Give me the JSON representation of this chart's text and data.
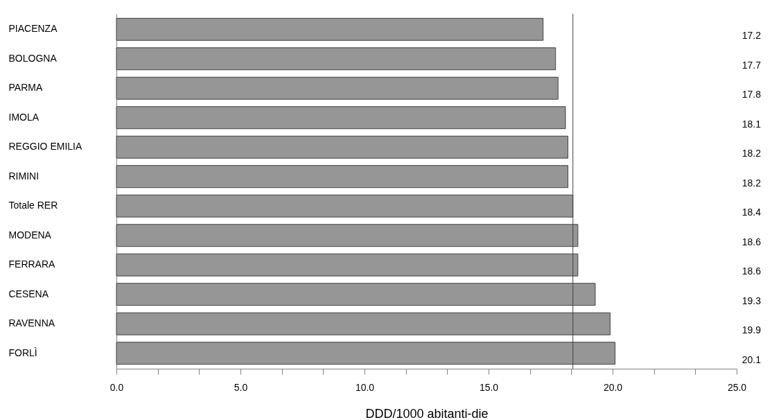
{
  "chart_data": {
    "type": "bar",
    "orientation": "horizontal",
    "xlabel": "DDD/1000 abitanti-die",
    "categories": [
      "PIACENZA",
      "BOLOGNA",
      "PARMA",
      "IMOLA",
      "REGGIO EMILIA",
      "RIMINI",
      "Totale RER",
      "MODENA",
      "FERRARA",
      "CESENA",
      "RAVENNA",
      "FORLÌ"
    ],
    "values": [
      17.2,
      17.7,
      17.8,
      18.1,
      18.2,
      18.2,
      18.4,
      18.6,
      18.6,
      19.3,
      19.9,
      20.1
    ],
    "value_labels": [
      "17.2",
      "17.7",
      "17.8",
      "18.1",
      "18.2",
      "18.2",
      "18.4",
      "18.6",
      "18.6",
      "19.3",
      "19.9",
      "20.1"
    ],
    "color": "#969696",
    "xlim": [
      0,
      25
    ],
    "xticks": [
      {
        "value": 0,
        "label": "0.0"
      },
      {
        "value": 1.667,
        "label": null
      },
      {
        "value": 3.333,
        "label": null
      },
      {
        "value": 5,
        "label": "5.0"
      },
      {
        "value": 6.667,
        "label": null
      },
      {
        "value": 8.333,
        "label": null
      },
      {
        "value": 10,
        "label": "10.0"
      },
      {
        "value": 11.667,
        "label": null
      },
      {
        "value": 13.333,
        "label": null
      },
      {
        "value": 15,
        "label": "15.0"
      },
      {
        "value": 16.667,
        "label": null
      },
      {
        "value": 18.333,
        "label": null
      },
      {
        "value": 20,
        "label": "20.0"
      },
      {
        "value": 21.667,
        "label": null
      },
      {
        "value": 23.333,
        "label": null
      },
      {
        "value": 25,
        "label": "25.0"
      }
    ],
    "ref_lines": [
      {
        "axis": "x",
        "value": 18.4,
        "color": "#404040"
      }
    ],
    "grid": false
  }
}
